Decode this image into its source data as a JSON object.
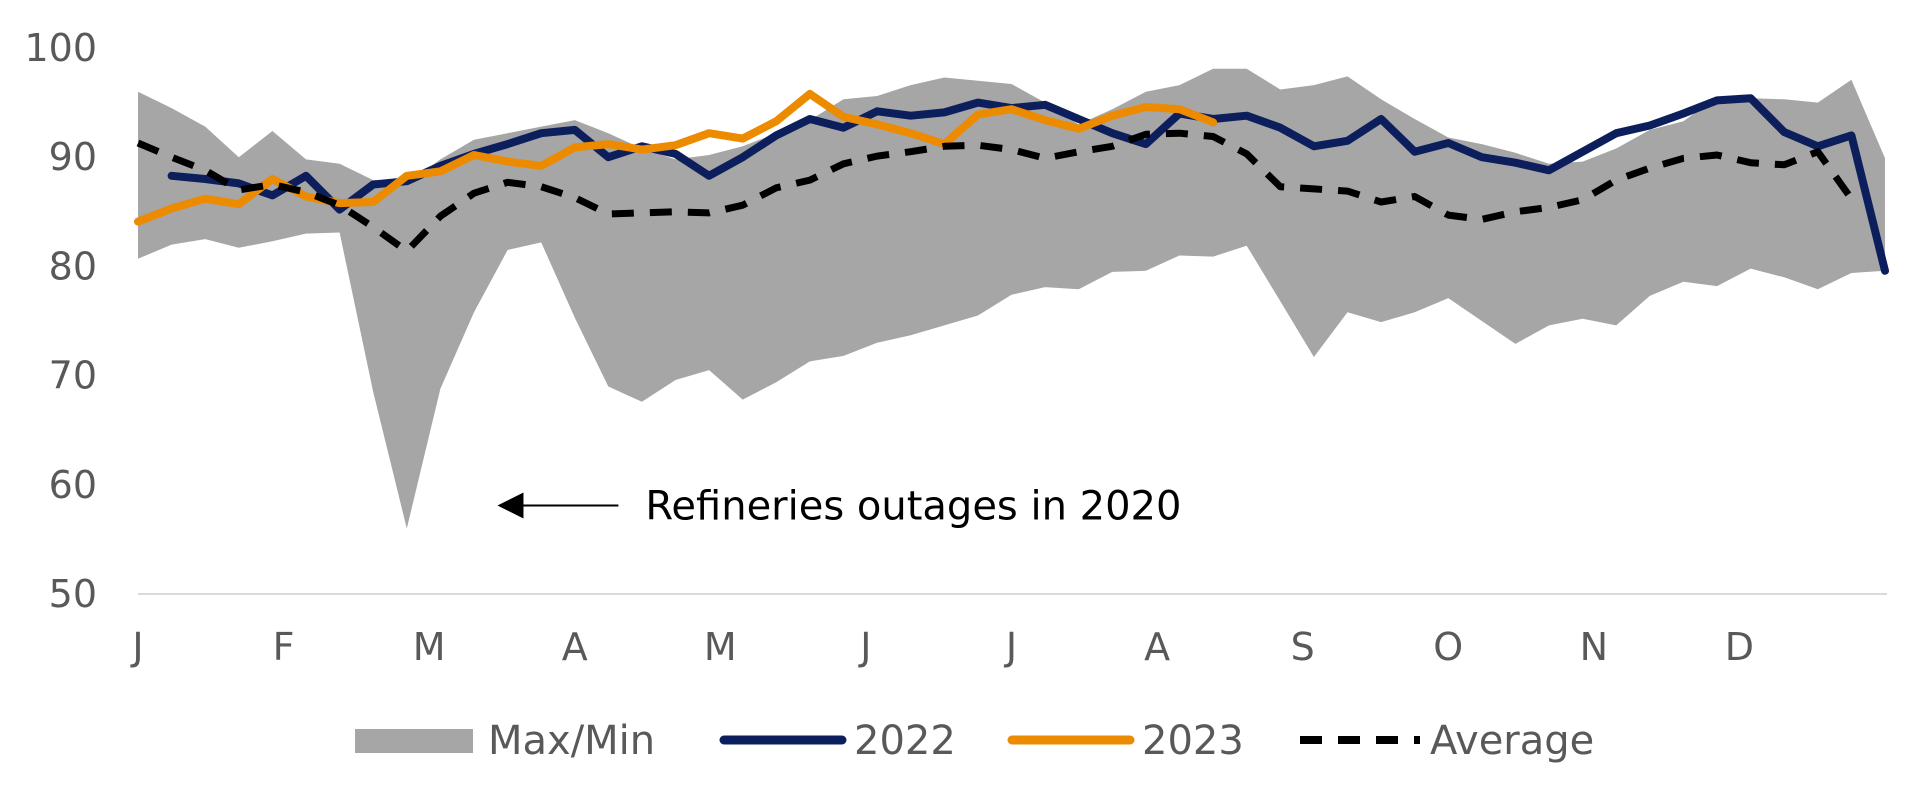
{
  "chart_data": {
    "type": "line",
    "title": "",
    "xlabel": "",
    "ylabel": "",
    "ylim": [
      50,
      100
    ],
    "yticks": [
      50,
      60,
      70,
      80,
      90,
      100
    ],
    "month_labels": [
      "J",
      "F",
      "M",
      "A",
      "M",
      "J",
      "J",
      "A",
      "S",
      "O",
      "N",
      "D"
    ],
    "weeks": 53,
    "grid": false,
    "legend_position": "bottom",
    "band": {
      "name": "Max/Min",
      "color": "#a6a6a6",
      "max": [
        96.0,
        94.5,
        92.8,
        90.0,
        92.4,
        89.8,
        89.4,
        87.9,
        87.6,
        89.8,
        91.6,
        92.2,
        92.8,
        93.4,
        92.2,
        90.8,
        89.8,
        90.2,
        91.0,
        92.2,
        93.4,
        95.3,
        95.6,
        96.6,
        97.3,
        97.0,
        96.7,
        95.0,
        93.0,
        94.4,
        96.0,
        96.6,
        98.1,
        98.1,
        96.2,
        96.6,
        97.4,
        95.3,
        93.5,
        91.8,
        91.2,
        90.4,
        89.4,
        89.6,
        90.8,
        92.5,
        93.3,
        95.5,
        95.4,
        95.3,
        95.0,
        97.1,
        89.9
      ],
      "min": [
        80.7,
        82.0,
        82.5,
        81.7,
        82.3,
        83.0,
        83.1,
        68.5,
        56.0,
        68.8,
        75.8,
        81.5,
        82.2,
        75.3,
        69.0,
        67.6,
        69.6,
        70.5,
        67.8,
        69.4,
        71.3,
        71.8,
        73.0,
        73.7,
        74.6,
        75.5,
        77.4,
        78.1,
        77.9,
        79.5,
        79.6,
        81.0,
        80.9,
        81.9,
        76.8,
        71.7,
        75.8,
        74.9,
        75.8,
        77.1,
        75.0,
        72.9,
        74.6,
        75.2,
        74.6,
        77.3,
        78.6,
        78.2,
        79.8,
        79.0,
        77.9,
        79.4,
        79.6
      ]
    },
    "series": [
      {
        "name": "2022",
        "color": "#0c1f5c",
        "style": "solid",
        "start_week": 2,
        "values": [
          88.3,
          88.0,
          87.6,
          86.5,
          88.3,
          85.2,
          87.5,
          87.8,
          89.2,
          90.3,
          91.2,
          92.2,
          92.5,
          90.0,
          91.0,
          90.3,
          88.3,
          90.0,
          92.0,
          93.5,
          92.7,
          94.2,
          93.8,
          94.1,
          95.0,
          94.5,
          94.8,
          93.5,
          92.2,
          91.2,
          94.0,
          93.5,
          93.8,
          92.7,
          91.0,
          91.5,
          93.5,
          90.5,
          91.3,
          90.0,
          89.5,
          88.8,
          90.5,
          92.2,
          92.9,
          94.0,
          95.2,
          95.4,
          92.3,
          91.0,
          92.0,
          79.6
        ]
      },
      {
        "name": "2023",
        "color": "#ed8b00",
        "style": "solid",
        "start_week": 1,
        "values": [
          84.1,
          85.3,
          86.2,
          85.7,
          88.0,
          86.4,
          85.8,
          85.9,
          88.3,
          88.7,
          90.2,
          89.6,
          89.2,
          90.9,
          91.2,
          90.7,
          91.1,
          92.2,
          91.7,
          93.3,
          95.8,
          93.7,
          93.0,
          92.2,
          91.2,
          93.9,
          94.4,
          93.4,
          92.6,
          93.8,
          94.6,
          94.4,
          93.2
        ]
      },
      {
        "name": "Average",
        "color": "#000000",
        "style": "dashed",
        "start_week": 1,
        "values": [
          91.3,
          90.0,
          88.8,
          87.0,
          87.5,
          86.8,
          85.6,
          83.6,
          81.4,
          84.6,
          86.7,
          87.7,
          87.3,
          86.3,
          84.8,
          84.9,
          85.0,
          84.9,
          85.6,
          87.2,
          87.9,
          89.4,
          90.1,
          90.5,
          91.0,
          91.1,
          90.7,
          89.9,
          90.5,
          91.0,
          92.1,
          92.2,
          91.9,
          90.3,
          87.3,
          87.1,
          86.9,
          85.9,
          86.4,
          84.7,
          84.3,
          85.0,
          85.4,
          86.1,
          87.9,
          89.0,
          89.9,
          90.2,
          89.5,
          89.3,
          90.5,
          86.2
        ]
      }
    ],
    "annotation": {
      "text": "Refineries outages in 2020",
      "arrow_target_week": 11.7,
      "arrow_tail_week": 15.3,
      "y_value": 58.1
    },
    "legend": [
      {
        "label": "Max/Min",
        "kind": "band",
        "color": "#a6a6a6"
      },
      {
        "label": "2022",
        "kind": "line",
        "color": "#0c1f5c"
      },
      {
        "label": "2023",
        "kind": "line",
        "color": "#ed8b00"
      },
      {
        "label": "Average",
        "kind": "dashed",
        "color": "#000000"
      }
    ]
  }
}
